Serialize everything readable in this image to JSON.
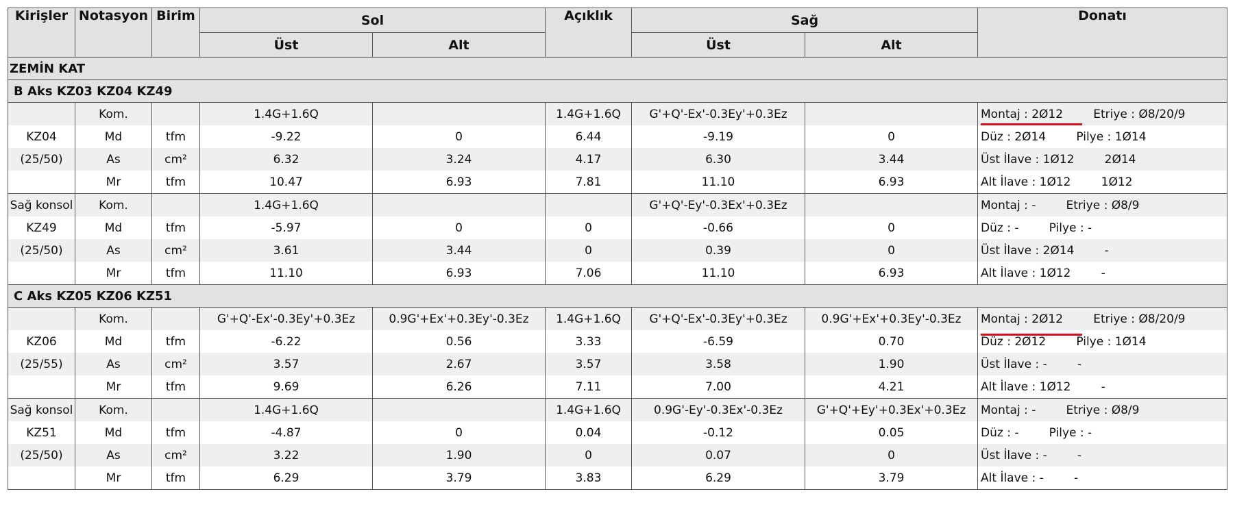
{
  "header": {
    "columns": [
      "Kirişler",
      "Notasyon",
      "Birim",
      "Sol",
      "Açıklık",
      "Sağ",
      "Donatı"
    ],
    "subcolumns": [
      "Üst",
      "Alt",
      "Üst",
      "Alt"
    ]
  },
  "floors": [
    {
      "title": "ZEMİN KAT",
      "axes": [
        {
          "title": "B Aks KZ03 KZ04 KZ49",
          "beams": [
            {
              "rows": [
                [
                  null,
                  "Kom.",
                  null,
                  "1.4G+1.6Q",
                  null,
                  "1.4G+1.6Q",
                  "G'+Q'-Ex'-0.3Ey'+0.3Ez",
                  null,
                  [
                    "Montaj : 2Ø12",
                    "Etriye : Ø8/20/9"
                  ]
                ],
                [
                  "KZ04",
                  "Md",
                  "tfm",
                  "-9.22",
                  "0",
                  "6.44",
                  "-9.19",
                  "0",
                  [
                    "Düz : 2Ø14",
                    "Pilye : 1Ø14"
                  ]
                ],
                [
                  "(25/50)",
                  "As",
                  "cm²",
                  "6.32",
                  "3.24",
                  "4.17",
                  "6.30",
                  "3.44",
                  [
                    "Üst İlave : 1Ø12",
                    "2Ø14"
                  ]
                ],
                [
                  null,
                  "Mr",
                  "tfm",
                  "10.47",
                  "6.93",
                  "7.81",
                  "11.10",
                  "6.93",
                  [
                    "Alt İlave : 1Ø12",
                    "1Ø12"
                  ]
                ]
              ]
            },
            {
              "rows": [
                [
                  "Sağ konsol",
                  "Kom.",
                  null,
                  "1.4G+1.6Q",
                  null,
                  null,
                  "G'+Q'-Ey'-0.3Ex'+0.3Ez",
                  null,
                  [
                    "Montaj : -",
                    "Etriye : Ø8/9"
                  ]
                ],
                [
                  "KZ49",
                  "Md",
                  "tfm",
                  "-5.97",
                  "0",
                  "0",
                  "-0.66",
                  "0",
                  [
                    "Düz : -",
                    "Pilye : -"
                  ]
                ],
                [
                  "(25/50)",
                  "As",
                  "cm²",
                  "3.61",
                  "3.44",
                  "0",
                  "0.39",
                  "0",
                  [
                    "Üst İlave : 2Ø14",
                    "-"
                  ]
                ],
                [
                  null,
                  "Mr",
                  "tfm",
                  "11.10",
                  "6.93",
                  "7.06",
                  "11.10",
                  "6.93",
                  [
                    "Alt İlave : 1Ø12",
                    "-"
                  ]
                ]
              ]
            }
          ]
        },
        {
          "title": "C Aks KZ05 KZ06 KZ51",
          "beams": [
            {
              "rows": [
                [
                  null,
                  "Kom.",
                  null,
                  "G'+Q'-Ex'-0.3Ey'+0.3Ez",
                  "0.9G'+Ex'+0.3Ey'-0.3Ez",
                  "1.4G+1.6Q",
                  "G'+Q'-Ex'-0.3Ey'+0.3Ez",
                  "0.9G'+Ex'+0.3Ey'-0.3Ez",
                  [
                    "Montaj : 2Ø12",
                    "Etriye : Ø8/20/9"
                  ]
                ],
                [
                  "KZ06",
                  "Md",
                  "tfm",
                  "-6.22",
                  "0.56",
                  "3.33",
                  "-6.59",
                  "0.70",
                  [
                    "Düz : 2Ø12",
                    "Pilye : 1Ø14"
                  ]
                ],
                [
                  "(25/55)",
                  "As",
                  "cm²",
                  "3.57",
                  "2.67",
                  "3.57",
                  "3.58",
                  "1.90",
                  [
                    "Üst İlave : -",
                    "-"
                  ]
                ],
                [
                  null,
                  "Mr",
                  "tfm",
                  "9.69",
                  "6.26",
                  "7.11",
                  "7.00",
                  "4.21",
                  [
                    "Alt İlave : 1Ø12",
                    "-"
                  ]
                ]
              ]
            },
            {
              "rows": [
                [
                  "Sağ konsol",
                  "Kom.",
                  null,
                  "1.4G+1.6Q",
                  null,
                  "1.4G+1.6Q",
                  "0.9G'-Ey'-0.3Ex'-0.3Ez",
                  "G'+Q'+Ey'+0.3Ex'+0.3Ez",
                  [
                    "Montaj : -",
                    "Etriye : Ø8/9"
                  ]
                ],
                [
                  "KZ51",
                  "Md",
                  "tfm",
                  "-4.87",
                  "0",
                  "0.04",
                  "-0.12",
                  "0.05",
                  [
                    "Düz : -",
                    "Pilye : -"
                  ]
                ],
                [
                  "(25/50)",
                  "As",
                  "cm²",
                  "3.22",
                  "1.90",
                  "0",
                  "0.07",
                  "0",
                  [
                    "Üst İlave : -",
                    "-"
                  ]
                ],
                [
                  null,
                  "Mr",
                  "tfm",
                  "6.29",
                  "3.79",
                  "3.83",
                  "6.29",
                  "3.79",
                  [
                    "Alt İlave : -",
                    "-"
                  ]
                ]
              ]
            }
          ]
        }
      ]
    }
  ]
}
